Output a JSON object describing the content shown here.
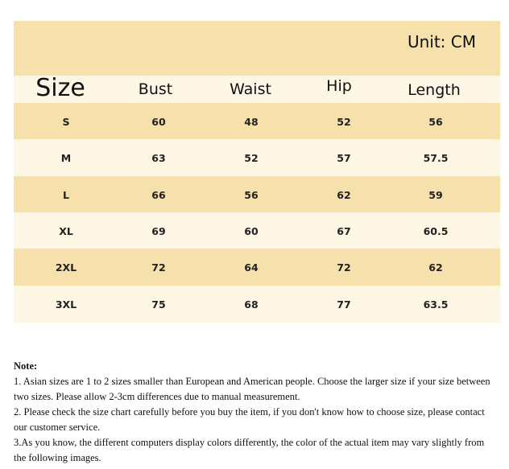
{
  "colors": {
    "tan": "#f6e0ab",
    "cream": "#fdf6e4"
  },
  "unit": "Unit: CM",
  "headers": [
    "Size",
    "Bust",
    "Waist",
    "Hip",
    "Length"
  ],
  "rows": [
    [
      "S",
      "60",
      "48",
      "52",
      "56"
    ],
    [
      "M",
      "63",
      "52",
      "57",
      "57.5"
    ],
    [
      "L",
      "66",
      "56",
      "62",
      "59"
    ],
    [
      "XL",
      "69",
      "60",
      "67",
      "60.5"
    ],
    [
      "2XL",
      "72",
      "64",
      "72",
      "62"
    ],
    [
      "3XL",
      "75",
      "68",
      "77",
      "63.5"
    ]
  ],
  "note": {
    "title": "Note:",
    "lines": [
      "1. Asian sizes are 1 to 2 sizes smaller than European and American people. Choose the larger size if your size between two sizes. Please allow 2-3cm differences due to manual measurement.",
      "2. Please check the size chart carefully before you buy the item, if you don't know how to choose size, please contact our customer service.",
      "3.As you know, the different computers display colors differently, the color of the actual item may vary slightly from the following images."
    ]
  }
}
